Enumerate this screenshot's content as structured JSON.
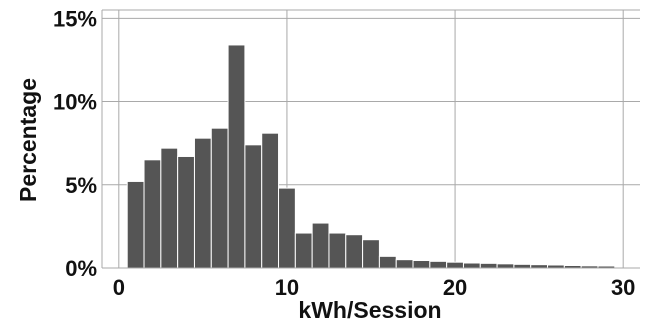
{
  "chart_data": {
    "type": "bar",
    "title": "",
    "xlabel": "kWh/Session",
    "ylabel": "Percentage",
    "xlim": [
      -1,
      31
    ],
    "ylim": [
      0,
      15.5
    ],
    "x_ticks": [
      0,
      10,
      20,
      30
    ],
    "y_ticks": [
      0,
      5,
      10,
      15
    ],
    "y_tick_labels": [
      "0%",
      "5%",
      "10%",
      "15%"
    ],
    "grid": true,
    "bar_color": "#555555",
    "bin_width": 1,
    "series": [
      {
        "x": [
          1,
          2,
          3,
          4,
          5,
          6,
          7,
          8,
          9,
          10,
          11,
          12,
          13,
          14,
          15,
          16,
          17,
          18,
          19,
          20,
          21,
          22,
          23,
          24,
          25,
          26,
          27,
          28,
          29
        ],
        "values": [
          5.2,
          6.5,
          7.2,
          6.7,
          7.8,
          8.4,
          13.4,
          7.4,
          8.1,
          4.8,
          2.1,
          2.7,
          2.1,
          2.0,
          1.7,
          0.7,
          0.5,
          0.45,
          0.4,
          0.35,
          0.3,
          0.28,
          0.25,
          0.22,
          0.2,
          0.18,
          0.15,
          0.13,
          0.12
        ]
      }
    ]
  }
}
